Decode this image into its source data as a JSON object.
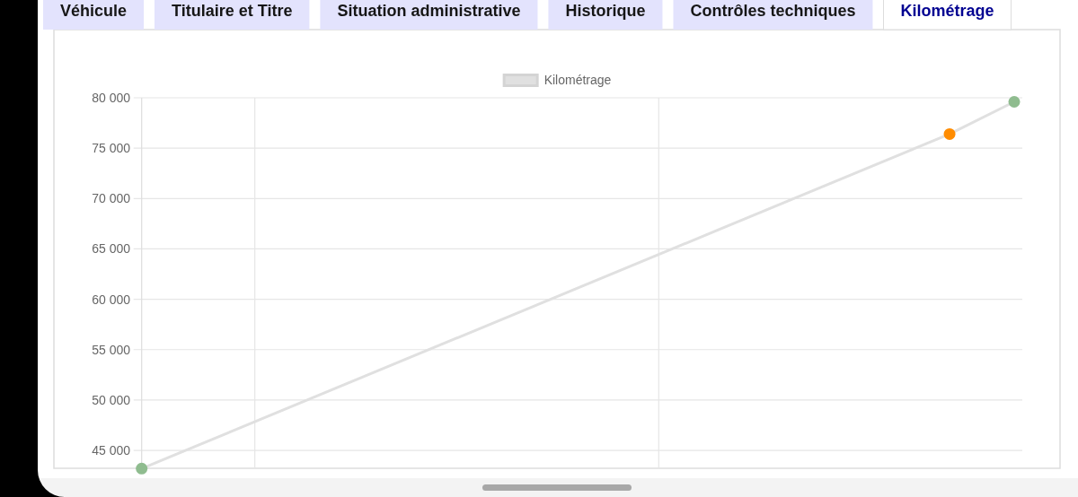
{
  "chart_data": {
    "type": "line",
    "annotations": [
      "Véhicule",
      "Titulaire et Titre",
      "Situation administrative",
      "Historique",
      "Contrôles techniques",
      "Kilométrage"
    ],
    "legend": "top",
    "grid": "y",
    "marker": "circle",
    "tick_labels": "y",
    "categories": [
      null,
      null,
      null,
      null,
      null,
      null,
      null,
      null,
      null,
      null,
      null,
      null,
      null,
      null,
      null,
      null,
      null,
      null,
      null,
      null,
      null,
      null,
      null,
      null,
      null,
      null,
      null,
      null,
      null,
      null,
      null,
      null,
      null,
      null,
      null,
      null,
      null,
      null,
      null,
      null,
      null,
      null,
      null,
      null,
      null,
      null,
      null,
      null,
      null,
      null,
      null,
      null,
      null,
      null,
      null
    ],
    "ylim": [
      43200,
      80000
    ],
    "yticks": [
      {
        "value": 45000,
        "label": "45 000"
      },
      {
        "value": 50000,
        "label": "50 000"
      },
      {
        "value": 55000,
        "label": "55 000"
      },
      {
        "value": 60000,
        "label": "60 000"
      },
      {
        "value": 65000,
        "label": "65 000"
      },
      {
        "value": 70000,
        "label": "70 000"
      },
      {
        "value": 75000,
        "label": "75 000"
      },
      {
        "value": 80000,
        "label": "80 000"
      }
    ],
    "series": [
      {
        "name": "Kilométrage",
        "color": "#e0e0e0",
        "colors": [
          "#8fbc8f",
          null,
          null,
          null,
          null,
          null,
          null,
          null,
          null,
          null,
          null,
          null,
          null,
          null,
          null,
          null,
          null,
          null,
          null,
          null,
          null,
          null,
          null,
          null,
          null,
          null,
          null,
          null,
          null,
          null,
          null,
          null,
          null,
          null,
          null,
          null,
          null,
          null,
          null,
          null,
          null,
          null,
          null,
          null,
          null,
          null,
          null,
          null,
          null,
          null,
          "#ff8c00",
          null,
          null,
          null,
          "#8fbc8f"
        ],
        "values": [
          43200,
          null,
          null,
          null,
          null,
          null,
          null,
          null,
          null,
          null,
          null,
          null,
          null,
          null,
          null,
          null,
          null,
          null,
          null,
          null,
          null,
          null,
          null,
          null,
          null,
          null,
          null,
          null,
          null,
          null,
          null,
          null,
          null,
          null,
          null,
          null,
          null,
          null,
          null,
          null,
          null,
          null,
          null,
          null,
          null,
          null,
          null,
          null,
          null,
          null,
          76400,
          null,
          null,
          null,
          79600
        ]
      }
    ]
  }
}
